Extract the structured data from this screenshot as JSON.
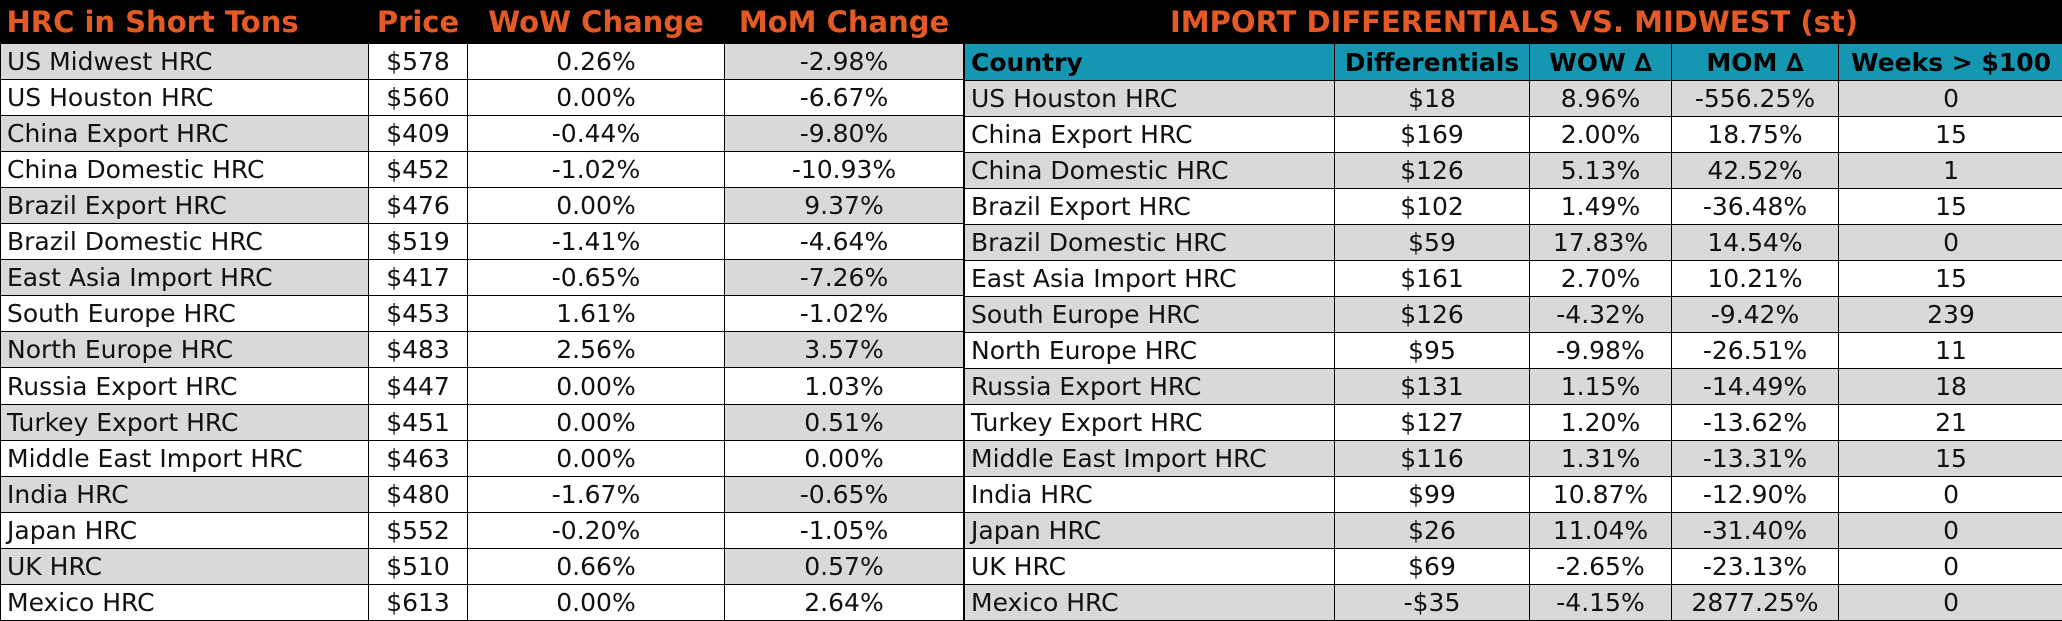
{
  "left": {
    "headers": [
      "HRC in Short Tons",
      "Price",
      "WoW Change",
      "MoM Change"
    ],
    "rows": [
      {
        "name": "US Midwest HRC",
        "price": "$578",
        "wow": "0.26%",
        "mom": "-2.98%"
      },
      {
        "name": "US Houston HRC",
        "price": "$560",
        "wow": "0.00%",
        "mom": "-6.67%"
      },
      {
        "name": "China Export HRC",
        "price": "$409",
        "wow": "-0.44%",
        "mom": "-9.80%"
      },
      {
        "name": "China Domestic HRC",
        "price": "$452",
        "wow": "-1.02%",
        "mom": "-10.93%"
      },
      {
        "name": "Brazil Export HRC",
        "price": "$476",
        "wow": "0.00%",
        "mom": "9.37%"
      },
      {
        "name": "Brazil Domestic HRC",
        "price": "$519",
        "wow": "-1.41%",
        "mom": "-4.64%"
      },
      {
        "name": "East Asia Import HRC",
        "price": "$417",
        "wow": "-0.65%",
        "mom": "-7.26%"
      },
      {
        "name": "South Europe HRC",
        "price": "$453",
        "wow": "1.61%",
        "mom": "-1.02%"
      },
      {
        "name": "North Europe HRC",
        "price": "$483",
        "wow": "2.56%",
        "mom": "3.57%"
      },
      {
        "name": "Russia Export HRC",
        "price": "$447",
        "wow": "0.00%",
        "mom": "1.03%"
      },
      {
        "name": "Turkey Export HRC",
        "price": "$451",
        "wow": "0.00%",
        "mom": "0.51%"
      },
      {
        "name": "Middle East Import HRC",
        "price": "$463",
        "wow": "0.00%",
        "mom": "0.00%"
      },
      {
        "name": "India HRC",
        "price": "$480",
        "wow": "-1.67%",
        "mom": "-0.65%"
      },
      {
        "name": "Japan HRC",
        "price": "$552",
        "wow": "-0.20%",
        "mom": "-1.05%"
      },
      {
        "name": "UK HRC",
        "price": "$510",
        "wow": "0.66%",
        "mom": "0.57%"
      },
      {
        "name": "Mexico HRC",
        "price": "$613",
        "wow": "0.00%",
        "mom": "2.64%"
      }
    ]
  },
  "right": {
    "title": "IMPORT DIFFERENTIALS VS. MIDWEST (st)",
    "headers": [
      "Country",
      "Differentials",
      "WOW ∆",
      "MOM ∆",
      "Weeks > $100"
    ],
    "rows": [
      {
        "name": "US Houston HRC",
        "diff": "$18",
        "wow": "8.96%",
        "mom": "-556.25%",
        "weeks": "0"
      },
      {
        "name": "China Export HRC",
        "diff": "$169",
        "wow": "2.00%",
        "mom": "18.75%",
        "weeks": "15"
      },
      {
        "name": "China Domestic HRC",
        "diff": "$126",
        "wow": "5.13%",
        "mom": "42.52%",
        "weeks": "1"
      },
      {
        "name": "Brazil Export HRC",
        "diff": "$102",
        "wow": "1.49%",
        "mom": "-36.48%",
        "weeks": "15"
      },
      {
        "name": "Brazil Domestic HRC",
        "diff": "$59",
        "wow": "17.83%",
        "mom": "14.54%",
        "weeks": "0"
      },
      {
        "name": "East Asia Import HRC",
        "diff": "$161",
        "wow": "2.70%",
        "mom": "10.21%",
        "weeks": "15"
      },
      {
        "name": "South Europe HRC",
        "diff": "$126",
        "wow": "-4.32%",
        "mom": "-9.42%",
        "weeks": "239"
      },
      {
        "name": "North Europe HRC",
        "diff": "$95",
        "wow": "-9.98%",
        "mom": "-26.51%",
        "weeks": "11"
      },
      {
        "name": "Russia Export HRC",
        "diff": "$131",
        "wow": "1.15%",
        "mom": "-14.49%",
        "weeks": "18"
      },
      {
        "name": "Turkey Export HRC",
        "diff": "$127",
        "wow": "1.20%",
        "mom": "-13.62%",
        "weeks": "21"
      },
      {
        "name": "Middle East Import HRC",
        "diff": "$116",
        "wow": "1.31%",
        "mom": "-13.31%",
        "weeks": "15"
      },
      {
        "name": "India HRC",
        "diff": "$99",
        "wow": "10.87%",
        "mom": "-12.90%",
        "weeks": "0"
      },
      {
        "name": "Japan HRC",
        "diff": "$26",
        "wow": "11.04%",
        "mom": "-31.40%",
        "weeks": "0"
      },
      {
        "name": "UK HRC",
        "diff": "$69",
        "wow": "-2.65%",
        "mom": "-23.13%",
        "weeks": "0"
      },
      {
        "name": "Mexico HRC",
        "diff": "-$35",
        "wow": "-4.15%",
        "mom": "2877.25%",
        "weeks": "0"
      }
    ]
  },
  "colors": {
    "orange": "#e35a27",
    "teal": "#1597b2",
    "gray": "#d9d9d9",
    "white": "#ffffff"
  }
}
